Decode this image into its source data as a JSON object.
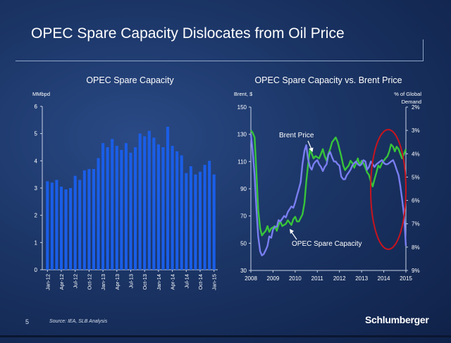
{
  "slide": {
    "title": "OPEC Spare Capacity Dislocates from Oil Price",
    "page_number": "5",
    "source": "Source:    IEA, SLB Analysis",
    "logo": "Schlumberger"
  },
  "colors": {
    "bar": "#1a5ee8",
    "brent_line": "#7a7ef0",
    "spare_line": "#37c43a",
    "highlight_circle": "#c8141e",
    "axis": "#c8d2e6"
  },
  "chart_data": [
    {
      "type": "bar",
      "title": "OPEC Spare Capacity",
      "ylabel": "MMbpd",
      "ylim": [
        0,
        6
      ],
      "yticks": [
        "0",
        "1",
        "2",
        "3",
        "4",
        "5",
        "6"
      ],
      "categories": [
        "Jan-12",
        "Feb-12",
        "Mar-12",
        "Apr-12",
        "May-12",
        "Jun-12",
        "Jul-12",
        "Aug-12",
        "Sep-12",
        "Oct-12",
        "Nov-12",
        "Dec-12",
        "Jan-13",
        "Feb-13",
        "Mar-13",
        "Apr-13",
        "May-13",
        "Jun-13",
        "Jul-13",
        "Aug-13",
        "Sep-13",
        "Oct-13",
        "Nov-13",
        "Dec-13",
        "Jan-14",
        "Feb-14",
        "Mar-14",
        "Apr-14",
        "May-14",
        "Jun-14",
        "Jul-14",
        "Aug-14",
        "Sep-14",
        "Oct-14",
        "Nov-14",
        "Dec-14",
        "Jan-15"
      ],
      "xticklabels": [
        "Jan-12",
        "Apr-12",
        "Jul-12",
        "Oct-12",
        "Jan-13",
        "Apr-13",
        "Jul-13",
        "Oct-13",
        "Jan-14",
        "Apr-14",
        "Jul-14",
        "Oct-14",
        "Jan-15"
      ],
      "values": [
        3.25,
        3.2,
        3.3,
        3.05,
        2.95,
        3.0,
        3.45,
        3.3,
        3.65,
        3.7,
        3.7,
        4.1,
        4.65,
        4.5,
        4.8,
        4.55,
        4.4,
        4.65,
        4.3,
        4.5,
        5.0,
        4.9,
        5.1,
        4.85,
        4.6,
        4.5,
        5.25,
        4.55,
        4.35,
        4.2,
        3.55,
        3.8,
        3.5,
        3.6,
        3.85,
        4.0,
        3.5
      ]
    },
    {
      "type": "line",
      "title": "OPEC Spare Capacity vs. Brent Price",
      "ylabel": "Brent, $",
      "y2label": "% of Global Demand",
      "ylim": [
        30,
        150
      ],
      "y2lim": [
        2,
        9
      ],
      "y2_inverted": true,
      "yticks": [
        "30",
        "50",
        "70",
        "90",
        "110",
        "130",
        "150"
      ],
      "y2ticks": [
        "2%",
        "3%",
        "4%",
        "5%",
        "6%",
        "7%",
        "8%",
        "9%"
      ],
      "xlim": [
        2008,
        2015
      ],
      "xticks": [
        "2008",
        "2009",
        "2010",
        "2011",
        "2012",
        "2013",
        "2014",
        "2015"
      ],
      "annotations": [
        "Brent Price",
        "OPEC Spare Capacity"
      ],
      "series": [
        {
          "name": "Brent Price",
          "axis": "left",
          "x": [
            2008.0,
            2008.08,
            2008.17,
            2008.25,
            2008.33,
            2008.42,
            2008.5,
            2008.58,
            2008.67,
            2008.75,
            2008.83,
            2008.92,
            2009.0,
            2009.08,
            2009.17,
            2009.25,
            2009.33,
            2009.42,
            2009.5,
            2009.58,
            2009.67,
            2009.75,
            2009.83,
            2009.92,
            2010.0,
            2010.08,
            2010.17,
            2010.25,
            2010.33,
            2010.42,
            2010.5,
            2010.58,
            2010.67,
            2010.75,
            2010.83,
            2010.92,
            2011.0,
            2011.08,
            2011.17,
            2011.25,
            2011.33,
            2011.42,
            2011.5,
            2011.58,
            2011.67,
            2011.75,
            2011.83,
            2011.92,
            2012.0,
            2012.08,
            2012.17,
            2012.25,
            2012.33,
            2012.42,
            2012.5,
            2012.58,
            2012.67,
            2012.75,
            2012.83,
            2012.92,
            2013.0,
            2013.08,
            2013.17,
            2013.25,
            2013.33,
            2013.42,
            2013.5,
            2013.58,
            2013.67,
            2013.75,
            2013.83,
            2013.92,
            2014.0,
            2014.08,
            2014.17,
            2014.25,
            2014.33,
            2014.42,
            2014.5,
            2014.58,
            2014.67,
            2014.75,
            2014.83,
            2014.92,
            2015.0
          ],
          "y": [
            130,
            118,
            100,
            75,
            55,
            44,
            41,
            42,
            45,
            48,
            55,
            54,
            60,
            62,
            62,
            67,
            66,
            68,
            70,
            69,
            73,
            75,
            77,
            76,
            80,
            85,
            90,
            95,
            108,
            118,
            122,
            112,
            106,
            104,
            108,
            110,
            111,
            108,
            106,
            103,
            106,
            108,
            115,
            117,
            113,
            110,
            110,
            108,
            107,
            99,
            97,
            97,
            100,
            102,
            104,
            107,
            109,
            110,
            108,
            107,
            108,
            111,
            110,
            104,
            106,
            110,
            108,
            106,
            108,
            109,
            110,
            111,
            109,
            108,
            108,
            109,
            110,
            111,
            108,
            104,
            100,
            92,
            82,
            70,
            48
          ]
        },
        {
          "name": "OPEC Spare Capacity",
          "axis": "right",
          "x": [
            2008.0,
            2008.08,
            2008.17,
            2008.25,
            2008.33,
            2008.42,
            2008.5,
            2008.58,
            2008.67,
            2008.75,
            2008.83,
            2008.92,
            2009.0,
            2009.08,
            2009.17,
            2009.25,
            2009.33,
            2009.42,
            2009.5,
            2009.58,
            2009.67,
            2009.75,
            2009.83,
            2009.92,
            2010.0,
            2010.08,
            2010.17,
            2010.25,
            2010.33,
            2010.42,
            2010.5,
            2010.58,
            2010.67,
            2010.75,
            2010.83,
            2010.92,
            2011.0,
            2011.08,
            2011.17,
            2011.25,
            2011.33,
            2011.42,
            2011.5,
            2011.58,
            2011.67,
            2011.75,
            2011.83,
            2011.92,
            2012.0,
            2012.08,
            2012.17,
            2012.25,
            2012.33,
            2012.42,
            2012.5,
            2012.58,
            2012.67,
            2012.75,
            2012.83,
            2012.92,
            2013.0,
            2013.08,
            2013.17,
            2013.25,
            2013.33,
            2013.42,
            2013.5,
            2013.58,
            2013.67,
            2013.75,
            2013.83,
            2013.92,
            2014.0,
            2014.08,
            2014.17,
            2014.25,
            2014.33,
            2014.42,
            2014.5,
            2014.58,
            2014.67,
            2014.75,
            2014.83,
            2014.92,
            2015.0
          ],
          "y": [
            3.0,
            3.1,
            3.3,
            4.8,
            6.4,
            7.2,
            7.5,
            7.4,
            7.3,
            7.1,
            7.35,
            7.2,
            7.15,
            7.1,
            7.3,
            7.05,
            6.9,
            7.1,
            7.05,
            7.0,
            6.85,
            6.95,
            7.05,
            6.8,
            6.7,
            6.9,
            6.9,
            6.75,
            6.6,
            6.1,
            5.2,
            4.5,
            3.8,
            4.0,
            4.2,
            4.1,
            4.15,
            4.2,
            4.0,
            3.8,
            4.1,
            4.3,
            4.0,
            3.8,
            3.5,
            3.4,
            3.3,
            3.5,
            3.8,
            4.1,
            4.5,
            4.7,
            4.6,
            4.5,
            4.3,
            4.4,
            4.6,
            4.4,
            4.2,
            4.5,
            4.3,
            4.4,
            4.6,
            4.8,
            4.9,
            5.2,
            5.4,
            5.1,
            4.8,
            4.5,
            4.6,
            4.4,
            4.3,
            4.2,
            4.1,
            3.9,
            3.6,
            3.7,
            3.9,
            3.7,
            3.8,
            4.0,
            4.2,
            4.0,
            3.8
          ]
        }
      ]
    }
  ]
}
